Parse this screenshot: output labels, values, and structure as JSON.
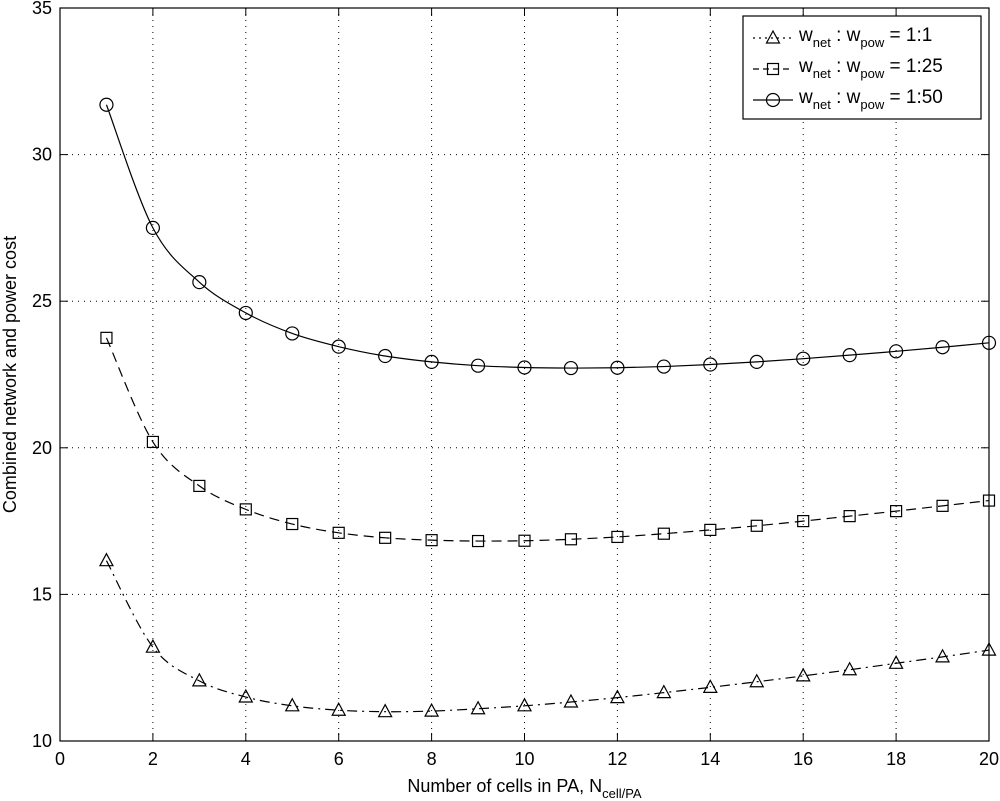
{
  "chart_data": {
    "type": "line",
    "title": "",
    "xlabel": "Number of cells in PA, N",
    "xlabel_sub": "cell/PA",
    "ylabel": "Combined network and power cost",
    "xlim": [
      0,
      20
    ],
    "ylim": [
      10,
      35
    ],
    "xticks": [
      0,
      2,
      4,
      6,
      8,
      10,
      12,
      14,
      16,
      18,
      20
    ],
    "yticks": [
      10,
      15,
      20,
      25,
      30,
      35
    ],
    "grid": true,
    "legend": "top-right",
    "x": [
      1,
      2,
      3,
      4,
      5,
      6,
      7,
      8,
      9,
      10,
      11,
      12,
      13,
      14,
      15,
      16,
      17,
      18,
      19,
      20
    ],
    "series": [
      {
        "name_main": "w",
        "sub1": "net",
        "mid": " : w",
        "sub2": "pow",
        "ratio": " = 1:1",
        "marker": "triangle",
        "dash": "dashdot",
        "values": [
          16.15,
          13.2,
          12.05,
          11.5,
          11.2,
          11.05,
          11.0,
          11.02,
          11.1,
          11.2,
          11.33,
          11.48,
          11.65,
          11.83,
          12.02,
          12.22,
          12.43,
          12.65,
          12.87,
          13.1
        ]
      },
      {
        "name_main": "w",
        "sub1": "net",
        "mid": " : w",
        "sub2": "pow",
        "ratio": " = 1:25",
        "marker": "square",
        "dash": "dashed",
        "values": [
          23.75,
          20.2,
          18.7,
          17.9,
          17.4,
          17.1,
          16.93,
          16.85,
          16.82,
          16.83,
          16.88,
          16.96,
          17.07,
          17.2,
          17.34,
          17.5,
          17.67,
          17.84,
          18.02,
          18.2
        ]
      },
      {
        "name_main": "w",
        "sub1": "net",
        "mid": " : w",
        "sub2": "pow",
        "ratio": " = 1:50",
        "marker": "circle",
        "dash": "solid",
        "values": [
          31.7,
          27.5,
          25.65,
          24.6,
          23.9,
          23.45,
          23.13,
          22.93,
          22.8,
          22.74,
          22.72,
          22.73,
          22.77,
          22.84,
          22.93,
          23.04,
          23.16,
          23.29,
          23.43,
          23.58
        ]
      }
    ]
  }
}
